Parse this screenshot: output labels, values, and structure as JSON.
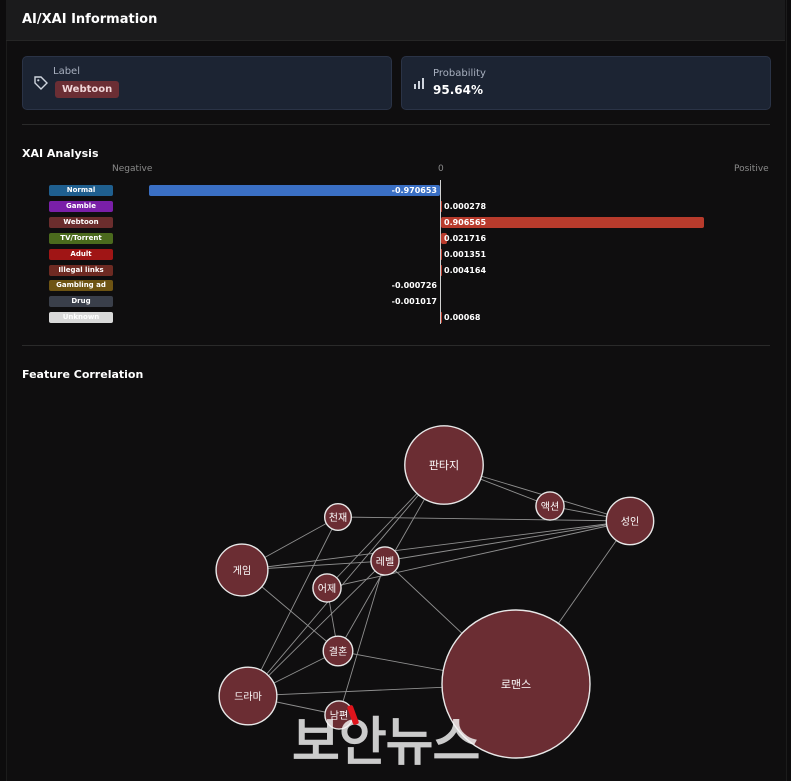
{
  "header": {
    "title": "AI/XAI Information"
  },
  "label_card": {
    "caption": "Label",
    "value": "Webtoon"
  },
  "prob_card": {
    "caption": "Probability",
    "value": "95.64%"
  },
  "xai": {
    "title": "XAI Analysis",
    "axis": {
      "negative": "Negative",
      "zero": "0",
      "positive": "Positive"
    }
  },
  "feature": {
    "title": "Feature Correlation"
  },
  "watermark": "보안뉴스",
  "chart_data": [
    {
      "type": "bar",
      "orientation": "horizontal",
      "title": "XAI Analysis",
      "categories": [
        "Normal",
        "Gamble",
        "Webtoon",
        "TV/Torrent",
        "Adult",
        "Illegal links",
        "Gambling ad",
        "Drug",
        "Unknown"
      ],
      "values": [
        -0.970653,
        0.000278,
        0.906565,
        0.021716,
        0.001351,
        0.004164,
        -0.000726,
        -0.001017,
        0.00068
      ],
      "value_labels": [
        "-0.970653",
        "0.000278",
        "0.906565",
        "0.021716",
        "0.001351",
        "0.004164",
        "-0.000726",
        "-0.001017",
        "0.00068"
      ],
      "category_colors": [
        "#1f5f8f",
        "#7a1fa8",
        "#6b2d2d",
        "#4b6a1d",
        "#a01515",
        "#6e2a22",
        "#6e5413",
        "#3a3f4a",
        "#d9d9d9"
      ],
      "positive_color": "#b83b2c",
      "negative_color": "#3a6fc4",
      "xlim": [
        -1,
        1
      ]
    },
    {
      "type": "network",
      "title": "Feature Correlation",
      "node_color": "#6b2d33",
      "nodes": [
        {
          "id": "판타지",
          "weight": 0.53
        },
        {
          "id": "액션",
          "weight": 0.19
        },
        {
          "id": "성인",
          "weight": 0.32
        },
        {
          "id": "천재",
          "weight": 0.18
        },
        {
          "id": "게임",
          "weight": 0.35
        },
        {
          "id": "레벨",
          "weight": 0.19
        },
        {
          "id": "어제",
          "weight": 0.19
        },
        {
          "id": "결혼",
          "weight": 0.2
        },
        {
          "id": "로맨스",
          "weight": 1.0
        },
        {
          "id": "드라마",
          "weight": 0.39
        },
        {
          "id": "남편",
          "weight": 0.19
        }
      ],
      "edges": [
        [
          "판타지",
          "액션"
        ],
        [
          "액션",
          "성인"
        ],
        [
          "판타지",
          "성인"
        ],
        [
          "천재",
          "성인"
        ],
        [
          "천재",
          "드라마"
        ],
        [
          "천재",
          "게임"
        ],
        [
          "게임",
          "레벨"
        ],
        [
          "게임",
          "성인"
        ],
        [
          "게임",
          "결혼"
        ],
        [
          "판타지",
          "어제"
        ],
        [
          "판타지",
          "결혼"
        ],
        [
          "판타지",
          "드라마"
        ],
        [
          "레벨",
          "성인"
        ],
        [
          "레벨",
          "로맨스"
        ],
        [
          "레벨",
          "드라마"
        ],
        [
          "레벨",
          "남편"
        ],
        [
          "어제",
          "결혼"
        ],
        [
          "어제",
          "성인"
        ],
        [
          "결혼",
          "로맨스"
        ],
        [
          "결혼",
          "드라마"
        ],
        [
          "로맨스",
          "성인"
        ],
        [
          "로맨스",
          "드라마"
        ],
        [
          "남편",
          "드라마"
        ]
      ]
    }
  ]
}
